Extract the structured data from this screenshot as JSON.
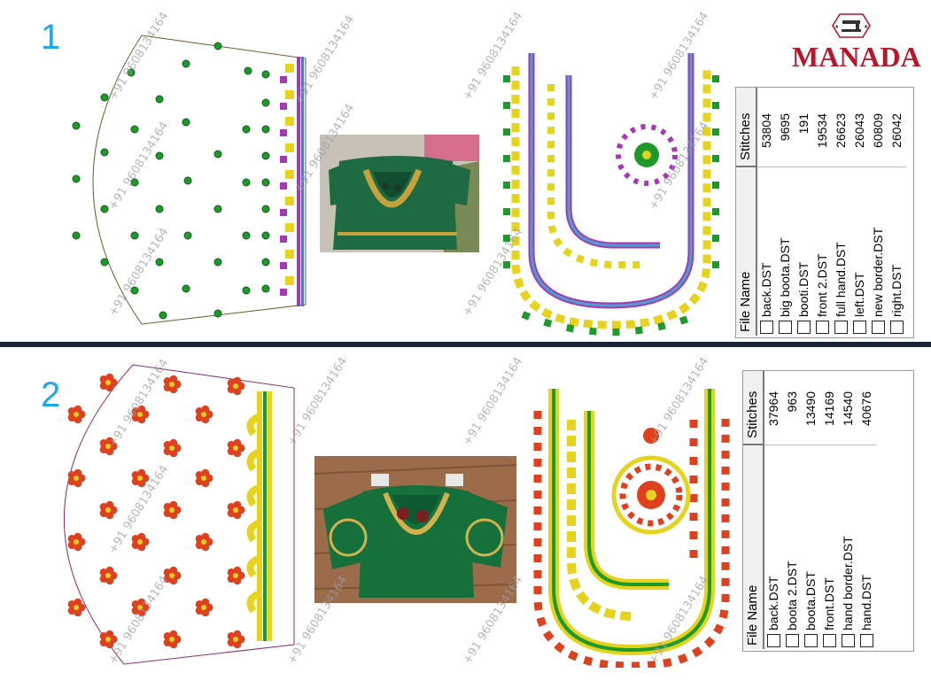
{
  "brand": {
    "name": "MANADA"
  },
  "watermark": "+91 9608134164",
  "designs": [
    {
      "number": "1",
      "table": {
        "col_file": "File Name",
        "col_stitches": "Stitches",
        "rows": [
          {
            "file": "back.DST",
            "stitches": "53804"
          },
          {
            "file": "big boota.DST",
            "stitches": "9695"
          },
          {
            "file": "booti.DST",
            "stitches": "191"
          },
          {
            "file": "front 2.DST",
            "stitches": "19534"
          },
          {
            "file": "full hand.DST",
            "stitches": "26623"
          },
          {
            "file": "left.DST",
            "stitches": "26043"
          },
          {
            "file": "new border.DST",
            "stitches": "60809"
          },
          {
            "file": "right.DST",
            "stitches": "26042"
          }
        ]
      }
    },
    {
      "number": "2",
      "table": {
        "col_file": "File Name",
        "col_stitches": "Stitches",
        "rows": [
          {
            "file": "back.DST",
            "stitches": "37964"
          },
          {
            "file": "boota 2.DST",
            "stitches": "963"
          },
          {
            "file": "boota.DST",
            "stitches": "13490"
          },
          {
            "file": "front.DST",
            "stitches": "14169"
          },
          {
            "file": "hand border.DST",
            "stitches": "14540"
          },
          {
            "file": "hand.DST",
            "stitches": "40676"
          }
        ]
      }
    }
  ],
  "colors": {
    "number": "#1ea7e6",
    "brand": "#b7162b",
    "divider": "#1d2433",
    "green_dot": "#1f9a2a",
    "flower": "#e0401e",
    "yellow": "#e6d31e",
    "purple": "#a638b8"
  }
}
